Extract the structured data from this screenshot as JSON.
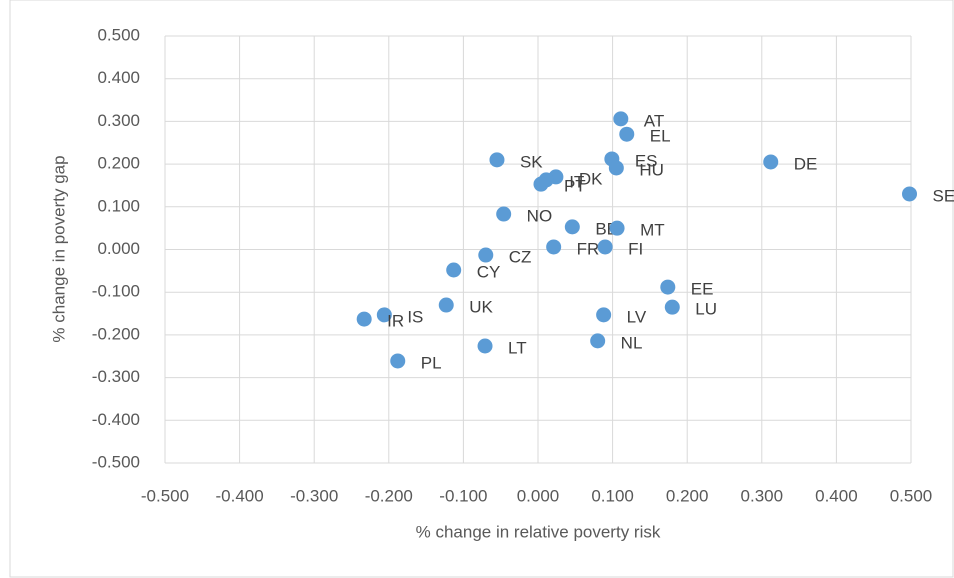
{
  "chart_data": {
    "type": "scatter",
    "x_label": "% change in relative poverty risk",
    "y_label": "% change in poverty gap",
    "point_labels": [
      "AT",
      "EL",
      "ES",
      "HU",
      "DE",
      "SE",
      "SK",
      "DK",
      "IT",
      "PT",
      "NO",
      "BE",
      "MT",
      "FR",
      "FI",
      "CZ",
      "CY",
      "EE",
      "LU",
      "UK",
      "IS",
      "IR",
      "LV",
      "NL",
      "LT",
      "PL"
    ],
    "x": [
      0.111,
      0.119,
      0.099,
      0.105,
      0.312,
      0.498,
      -0.055,
      0.024,
      0.011,
      0.004,
      -0.046,
      0.046,
      0.106,
      0.021,
      0.09,
      -0.07,
      -0.113,
      0.174,
      0.18,
      -0.123,
      -0.206,
      -0.233,
      0.088,
      0.08,
      -0.071,
      -0.188
    ],
    "values": [
      0.306,
      0.27,
      0.212,
      0.191,
      0.205,
      0.13,
      0.21,
      0.17,
      0.163,
      0.153,
      0.083,
      0.053,
      0.05,
      0.006,
      0.006,
      -0.013,
      -0.048,
      -0.088,
      -0.135,
      -0.13,
      -0.153,
      -0.163,
      -0.153,
      -0.214,
      -0.226,
      -0.261
    ],
    "color": "#5b9bd5",
    "xlim": [
      -0.5,
      0.5
    ],
    "ylim": [
      -0.5,
      0.5
    ],
    "xticks": [
      {
        "value": -0.5,
        "label": "-0.500"
      },
      {
        "value": -0.4,
        "label": "-0.400"
      },
      {
        "value": -0.3,
        "label": "-0.300"
      },
      {
        "value": -0.2,
        "label": "-0.200"
      },
      {
        "value": -0.1,
        "label": "-0.100"
      },
      {
        "value": 0,
        "label": "0.000"
      },
      {
        "value": 0.1,
        "label": "0.100"
      },
      {
        "value": 0.2,
        "label": "0.200"
      },
      {
        "value": 0.3,
        "label": "0.300"
      },
      {
        "value": 0.4,
        "label": "0.400"
      },
      {
        "value": 0.5,
        "label": "0.500"
      }
    ],
    "yticks": [
      {
        "value": -0.5,
        "label": "-0.500"
      },
      {
        "value": -0.4,
        "label": "-0.400"
      },
      {
        "value": -0.3,
        "label": "-0.300"
      },
      {
        "value": -0.2,
        "label": "-0.200"
      },
      {
        "value": -0.1,
        "label": "-0.100"
      },
      {
        "value": 0,
        "label": "0.000"
      },
      {
        "value": 0.1,
        "label": "0.100"
      },
      {
        "value": 0.2,
        "label": "0.200"
      },
      {
        "value": 0.3,
        "label": "0.300"
      },
      {
        "value": 0.4,
        "label": "0.400"
      },
      {
        "value": 0.5,
        "label": "0.500"
      }
    ],
    "grid": true
  }
}
